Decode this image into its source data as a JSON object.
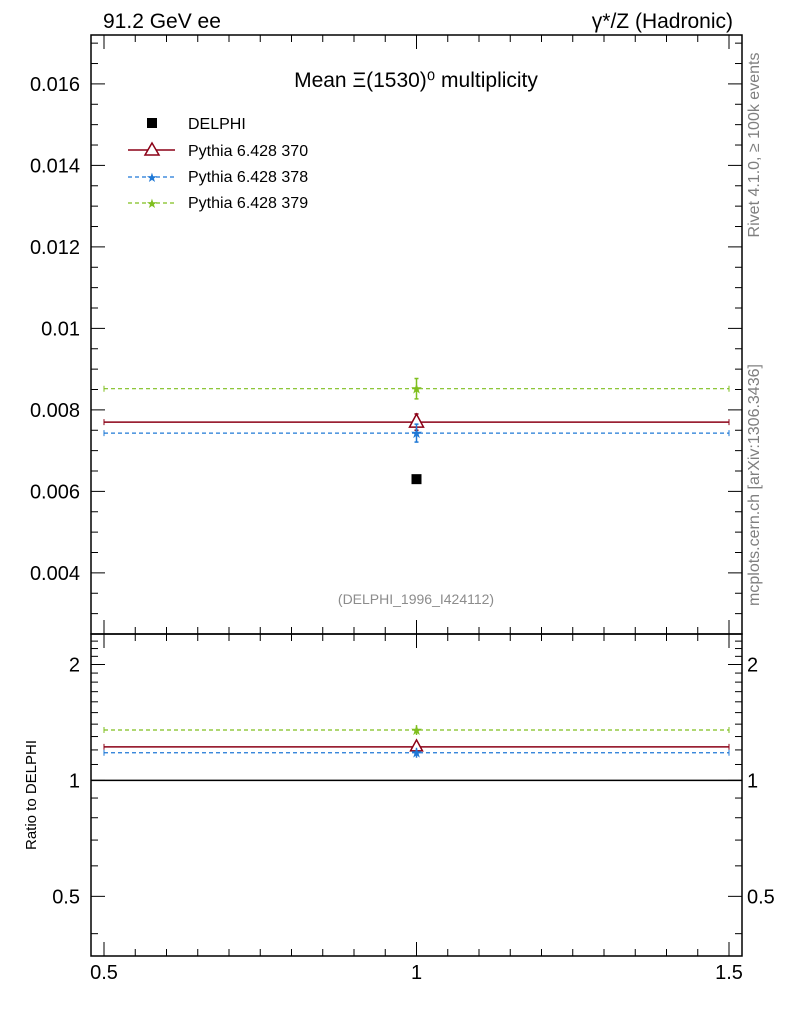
{
  "header": {
    "left": "91.2 GeV ee",
    "right_prefix": "γ*/Z (Hadronic)"
  },
  "side": {
    "rivet": "Rivet 4.1.0, ≥ 100k events",
    "mcplots": "mcplots.cern.ch [arXiv:1306.3436]"
  },
  "watermark": "(DELPHI_1996_I424112)",
  "colors": {
    "delphi": "#000000",
    "p370": "#8b0016",
    "p378": "#1f78d6",
    "p379": "#7fbf1f",
    "watermark": "#8c8c8c",
    "side": "#7f7f7f"
  },
  "chart_data": [
    {
      "type": "scatter",
      "title": "Mean Ξ(1530)⁰ multiplicity",
      "xlabel": "",
      "ylabel": "",
      "xlim": [
        0.5,
        1.5
      ],
      "ylim": [
        0.0025,
        0.0172
      ],
      "yticks": [
        "0.004",
        "0.006",
        "0.008",
        "0.01",
        "0.012",
        "0.014",
        "0.016"
      ],
      "legend_position": "top-left",
      "grid": false,
      "series": [
        {
          "name": "DELPHI",
          "marker": "square",
          "x": [
            1.0
          ],
          "y": [
            0.0063
          ],
          "yerr": [
            0.0
          ]
        },
        {
          "name": "Pythia 6.428 370",
          "marker": "triangle",
          "style": "solid",
          "x": [
            1.0
          ],
          "y": [
            0.0077
          ],
          "yerr": [
            0.0002
          ],
          "xrange": [
            0.5,
            1.5
          ]
        },
        {
          "name": "Pythia 6.428 378",
          "marker": "star",
          "style": "dashed",
          "x": [
            1.0
          ],
          "y": [
            0.00743
          ],
          "yerr": [
            0.00022
          ],
          "xrange": [
            0.5,
            1.5
          ]
        },
        {
          "name": "Pythia 6.428 379",
          "marker": "star",
          "style": "dashed",
          "x": [
            1.0
          ],
          "y": [
            0.00852
          ],
          "yerr": [
            0.00025
          ],
          "xrange": [
            0.5,
            1.5
          ]
        }
      ]
    },
    {
      "type": "line",
      "title": "",
      "xlabel": "",
      "ylabel": "Ratio to DELPHI",
      "xlim": [
        0.5,
        1.5
      ],
      "ylim": [
        0.35,
        2.4
      ],
      "xticks": [
        "0.5",
        "1",
        "1.5"
      ],
      "yticks": [
        "0.5",
        "1",
        "2"
      ],
      "reference_line": 1.0,
      "series": [
        {
          "name": "Pythia 6.428 370",
          "x": [
            1.0
          ],
          "y": [
            1.222
          ],
          "yerr": [
            0.032
          ]
        },
        {
          "name": "Pythia 6.428 378",
          "x": [
            1.0
          ],
          "y": [
            1.18
          ],
          "yerr": [
            0.035
          ]
        },
        {
          "name": "Pythia 6.428 379",
          "x": [
            1.0
          ],
          "y": [
            1.352
          ],
          "yerr": [
            0.04
          ]
        }
      ]
    }
  ]
}
